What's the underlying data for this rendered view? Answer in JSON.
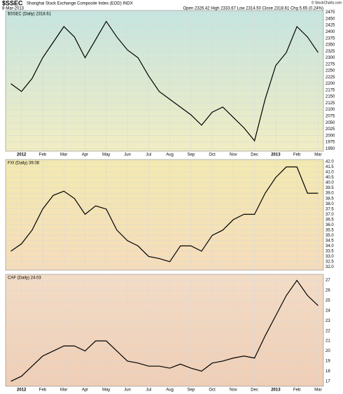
{
  "chart_data": [
    {
      "type": "line",
      "title": "$SSEC",
      "subtitle": "Shanghai Stock Exchange Composite Index (EOD) INDX",
      "date": "8-Mar-2013",
      "quote": "Open 2326.42  High 2333.67  Low 2314.50  Close 2318.61  Chg 5.65 (0.24%)",
      "credit": "© StockCharts.com",
      "categories": [
        null,
        "2012",
        null,
        "Feb",
        null,
        "Mar",
        null,
        "Apr",
        null,
        "May",
        null,
        "Jun",
        null,
        "Jul",
        null,
        "Aug",
        null,
        "Sep",
        null,
        "Oct",
        null,
        "Nov",
        null,
        "Dec",
        null,
        "2013",
        null,
        "Feb",
        null,
        "Mar"
      ],
      "series": [
        {
          "name": "$SSEC (Daily) 2318.61",
          "color": "#000000",
          "values": [
            2200,
            2170,
            2220,
            2300,
            2360,
            2420,
            2380,
            2300,
            2370,
            2440,
            2380,
            2330,
            2300,
            2230,
            2170,
            2140,
            2110,
            2080,
            2040,
            2090,
            2110,
            2070,
            2030,
            1980,
            2140,
            2270,
            2320,
            2420,
            2380,
            2320
          ]
        }
      ],
      "ylim": [
        1940,
        2482
      ],
      "yticks": [
        1950,
        1975,
        2000,
        2025,
        2050,
        2075,
        2100,
        2125,
        2150,
        2175,
        2200,
        2225,
        2250,
        2275,
        2300,
        2325,
        2350,
        2375,
        2400,
        2425,
        2450,
        2475
      ],
      "grid": true
    },
    {
      "type": "line",
      "categories": [
        null,
        "2012",
        null,
        "Feb",
        null,
        "Mar",
        null,
        "Apr",
        null,
        "May",
        null,
        "Jun",
        null,
        "Jul",
        null,
        "Aug",
        null,
        "Sep",
        null,
        "Oct",
        null,
        "Nov",
        null,
        "Dec",
        null,
        "2013",
        null,
        "Feb",
        null,
        "Mar"
      ],
      "series": [
        {
          "name": "FXI (Daily) 39.08",
          "color": "#000000",
          "values": [
            33.5,
            34.2,
            35.5,
            37.5,
            38.8,
            39.2,
            38.5,
            37.0,
            37.8,
            37.5,
            35.5,
            34.5,
            34.0,
            33.0,
            32.8,
            32.5,
            34.0,
            34.0,
            33.5,
            35.0,
            35.5,
            36.5,
            37.0,
            37.0,
            39.0,
            40.5,
            41.5,
            41.5,
            39.0,
            39.0
          ]
        }
      ],
      "ylim": [
        31.7,
        42.2
      ],
      "yticks": [
        {
          "value": 32,
          "label": "32.0"
        },
        32.5,
        {
          "value": 33,
          "label": "33.0"
        },
        33.5,
        {
          "value": 34,
          "label": "34.0"
        },
        34.5,
        {
          "value": 35,
          "label": "35.0"
        },
        35.5,
        {
          "value": 36,
          "label": "36.0"
        },
        36.5,
        {
          "value": 37,
          "label": "37.0"
        },
        37.5,
        {
          "value": 38,
          "label": "38.0"
        },
        38.5,
        {
          "value": 39,
          "label": "39.0"
        },
        39.5,
        {
          "value": 40,
          "label": "40.0"
        },
        40.5,
        {
          "value": 41,
          "label": "41.0"
        },
        41.5,
        {
          "value": 42,
          "label": "42.0"
        }
      ],
      "grid": true
    },
    {
      "type": "line",
      "categories": [
        null,
        "2012",
        null,
        "Feb",
        null,
        "Mar",
        null,
        "Apr",
        null,
        "May",
        null,
        "Jun",
        null,
        "Jul",
        null,
        "Aug",
        null,
        "Sep",
        null,
        "Oct",
        null,
        "Nov",
        null,
        "Dec",
        null,
        "2013",
        null,
        "Feb",
        null,
        "Mar"
      ],
      "series": [
        {
          "name": "CAF (Daily) 24.03",
          "color": "#000000",
          "values": [
            17.0,
            17.5,
            18.5,
            19.5,
            20.0,
            20.5,
            20.5,
            20.0,
            21.0,
            21.0,
            20.0,
            19.0,
            18.8,
            18.5,
            18.5,
            18.3,
            18.7,
            18.3,
            18.0,
            18.8,
            19.0,
            19.3,
            19.5,
            19.3,
            21.5,
            23.5,
            25.5,
            27.0,
            25.5,
            24.5
          ]
        }
      ],
      "ylim": [
        16.5,
        27.6
      ],
      "yticks": [
        17,
        18,
        19,
        20,
        21,
        22,
        23,
        24,
        25,
        26,
        27
      ],
      "grid": true
    }
  ]
}
